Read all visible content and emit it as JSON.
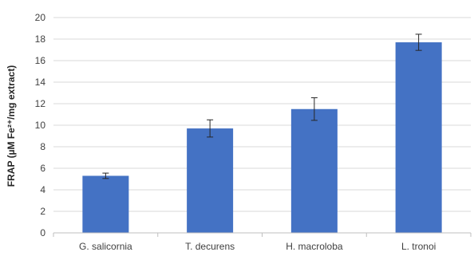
{
  "chart_data": {
    "type": "bar",
    "categories": [
      "G. salicornia",
      "T. decurens",
      "H. macroloba",
      "L. tronoi"
    ],
    "values": [
      5.3,
      9.7,
      11.5,
      17.7
    ],
    "errors": [
      0.25,
      0.8,
      1.05,
      0.75
    ],
    "ylabel": "FRAP (µM Fe²⁺/mg extract)",
    "ylim": [
      0,
      20
    ],
    "yticks": [
      0,
      2,
      4,
      6,
      8,
      10,
      12,
      14,
      16,
      18,
      20
    ],
    "grid": true,
    "bar_color": "#4472c4"
  }
}
